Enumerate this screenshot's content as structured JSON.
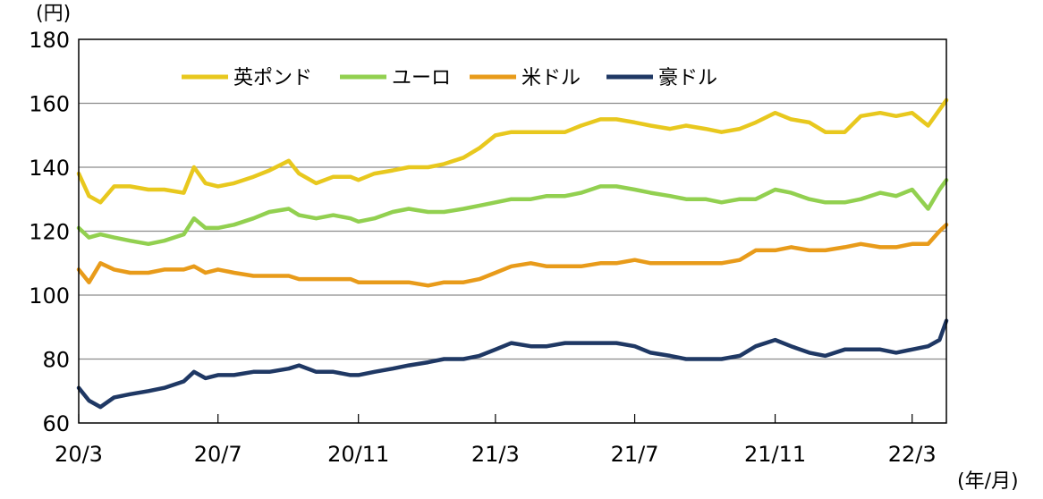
{
  "chart_data": {
    "type": "line",
    "y_unit": "(円)",
    "x_unit": "(年/月)",
    "ylim": [
      60,
      180
    ],
    "y_ticks": [
      "60",
      "80",
      "100",
      "120",
      "140",
      "160",
      "180"
    ],
    "x_ticks": [
      "20/3",
      "20/7",
      "20/11",
      "21/3",
      "21/7",
      "21/11",
      "22/3"
    ],
    "x_range": [
      "2020-03-01",
      "2022-03-31"
    ],
    "grid": "horizontal",
    "legend_position": "top-left",
    "x": [
      "2020-03-01",
      "2020-03-10",
      "2020-03-20",
      "2020-04-01",
      "2020-04-15",
      "2020-05-01",
      "2020-05-15",
      "2020-06-01",
      "2020-06-10",
      "2020-06-20",
      "2020-07-01",
      "2020-07-15",
      "2020-08-01",
      "2020-08-15",
      "2020-09-01",
      "2020-09-10",
      "2020-09-25",
      "2020-10-10",
      "2020-10-25",
      "2020-11-01",
      "2020-11-15",
      "2020-12-01",
      "2020-12-15",
      "2021-01-01",
      "2021-01-15",
      "2021-02-01",
      "2021-02-15",
      "2021-03-01",
      "2021-03-15",
      "2021-04-01",
      "2021-04-15",
      "2021-05-01",
      "2021-05-15",
      "2021-06-01",
      "2021-06-15",
      "2021-07-01",
      "2021-07-15",
      "2021-08-01",
      "2021-08-15",
      "2021-09-01",
      "2021-09-15",
      "2021-10-01",
      "2021-10-15",
      "2021-11-01",
      "2021-11-15",
      "2021-12-01",
      "2021-12-15",
      "2022-01-01",
      "2022-01-15",
      "2022-02-01",
      "2022-02-15",
      "2022-03-01",
      "2022-03-15",
      "2022-03-25",
      "2022-03-31"
    ],
    "series": [
      {
        "name": "英ポンド",
        "color": "#e8c81e",
        "values": [
          138,
          131,
          129,
          134,
          134,
          133,
          133,
          132,
          140,
          135,
          134,
          135,
          137,
          139,
          142,
          138,
          135,
          137,
          137,
          136,
          138,
          139,
          140,
          140,
          141,
          143,
          146,
          150,
          151,
          151,
          151,
          151,
          153,
          155,
          155,
          154,
          153,
          152,
          153,
          152,
          151,
          152,
          154,
          157,
          155,
          154,
          151,
          151,
          156,
          157,
          156,
          157,
          153,
          158,
          161
        ]
      },
      {
        "name": "ユーロ",
        "color": "#92d050",
        "values": [
          121,
          118,
          119,
          118,
          117,
          116,
          117,
          119,
          124,
          121,
          121,
          122,
          124,
          126,
          127,
          125,
          124,
          125,
          124,
          123,
          124,
          126,
          127,
          126,
          126,
          127,
          128,
          129,
          130,
          130,
          131,
          131,
          132,
          134,
          134,
          133,
          132,
          131,
          130,
          130,
          129,
          130,
          130,
          133,
          132,
          130,
          129,
          129,
          130,
          132,
          131,
          133,
          127,
          133,
          136
        ]
      },
      {
        "name": "米ドル",
        "color": "#e89b1a",
        "values": [
          108,
          104,
          110,
          108,
          107,
          107,
          108,
          108,
          109,
          107,
          108,
          107,
          106,
          106,
          106,
          105,
          105,
          105,
          105,
          104,
          104,
          104,
          104,
          103,
          104,
          104,
          105,
          107,
          109,
          110,
          109,
          109,
          109,
          110,
          110,
          111,
          110,
          110,
          110,
          110,
          110,
          111,
          114,
          114,
          115,
          114,
          114,
          115,
          116,
          115,
          115,
          116,
          116,
          120,
          122
        ]
      },
      {
        "name": "豪ドル",
        "color": "#1f3864",
        "values": [
          71,
          67,
          65,
          68,
          69,
          70,
          71,
          73,
          76,
          74,
          75,
          75,
          76,
          76,
          77,
          78,
          76,
          76,
          75,
          75,
          76,
          77,
          78,
          79,
          80,
          80,
          81,
          83,
          85,
          84,
          84,
          85,
          85,
          85,
          85,
          84,
          82,
          81,
          80,
          80,
          80,
          81,
          84,
          86,
          84,
          82,
          81,
          83,
          83,
          83,
          82,
          83,
          84,
          86,
          92
        ]
      }
    ]
  }
}
